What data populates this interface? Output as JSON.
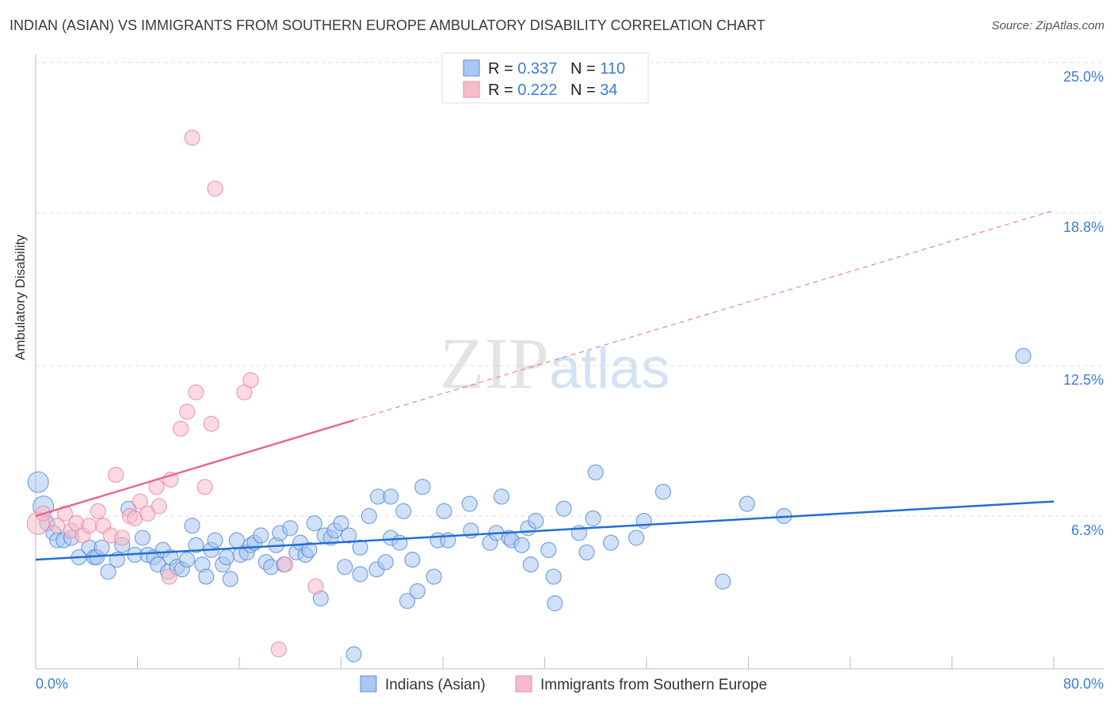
{
  "title": "INDIAN (ASIAN) VS IMMIGRANTS FROM SOUTHERN EUROPE AMBULATORY DISABILITY CORRELATION CHART",
  "source": "Source: ZipAtlas.com",
  "watermark": "ZIPatlas",
  "chart_data": {
    "type": "scatter",
    "ylabel": "Ambulatory Disability",
    "xlim": [
      0,
      80
    ],
    "ylim": [
      0,
      25
    ],
    "x_tick_labels": [
      "0.0%",
      "80.0%"
    ],
    "y_ticks": [
      6.3,
      12.5,
      18.8,
      25.0
    ],
    "y_tick_labels": [
      "6.3%",
      "12.5%",
      "18.8%",
      "25.0%"
    ],
    "legend": [
      {
        "r_label": "R = ",
        "r": "0.337",
        "n_label": "N = ",
        "n": "110"
      },
      {
        "r_label": "R = ",
        "r": "0.222",
        "n_label": "N = ",
        "n": "34"
      }
    ],
    "series": [
      {
        "name": "Indians (Asian)",
        "color": "#5b8fd8",
        "fill": "#a9c7f0",
        "line_color": "#1f6fd6",
        "trend": {
          "x0": 0,
          "y0": 4.5,
          "x1": 80,
          "y1": 6.9
        },
        "points": [
          [
            0.2,
            7.7
          ],
          [
            0.6,
            6.7
          ],
          [
            0.9,
            6.0
          ],
          [
            1.4,
            5.6
          ],
          [
            1.7,
            5.3
          ],
          [
            2.2,
            5.3
          ],
          [
            2.8,
            5.4
          ],
          [
            3.4,
            4.6
          ],
          [
            4.2,
            5.0
          ],
          [
            4.6,
            4.6
          ],
          [
            4.8,
            4.6
          ],
          [
            5.2,
            5.0
          ],
          [
            5.7,
            4.0
          ],
          [
            6.4,
            4.5
          ],
          [
            6.8,
            5.1
          ],
          [
            7.3,
            6.6
          ],
          [
            7.8,
            4.7
          ],
          [
            8.4,
            5.4
          ],
          [
            8.8,
            4.7
          ],
          [
            9.3,
            4.6
          ],
          [
            9.6,
            4.3
          ],
          [
            10.0,
            4.9
          ],
          [
            10.4,
            4.0
          ],
          [
            10.6,
            4.6
          ],
          [
            11.1,
            4.2
          ],
          [
            11.5,
            4.1
          ],
          [
            11.9,
            4.5
          ],
          [
            12.3,
            5.9
          ],
          [
            12.6,
            5.1
          ],
          [
            13.1,
            4.3
          ],
          [
            13.4,
            3.8
          ],
          [
            13.8,
            4.9
          ],
          [
            14.1,
            5.3
          ],
          [
            14.7,
            4.3
          ],
          [
            15.0,
            4.6
          ],
          [
            15.3,
            3.7
          ],
          [
            15.8,
            5.3
          ],
          [
            16.1,
            4.7
          ],
          [
            16.6,
            4.8
          ],
          [
            16.9,
            5.1
          ],
          [
            17.2,
            5.2
          ],
          [
            17.7,
            5.5
          ],
          [
            18.1,
            4.4
          ],
          [
            18.5,
            4.2
          ],
          [
            18.9,
            5.1
          ],
          [
            19.2,
            5.6
          ],
          [
            19.5,
            4.3
          ],
          [
            20.0,
            5.8
          ],
          [
            20.5,
            4.8
          ],
          [
            20.8,
            5.2
          ],
          [
            21.2,
            4.7
          ],
          [
            21.5,
            4.9
          ],
          [
            21.9,
            6.0
          ],
          [
            22.4,
            2.9
          ],
          [
            22.7,
            5.5
          ],
          [
            23.2,
            5.4
          ],
          [
            23.5,
            5.7
          ],
          [
            24.0,
            6.0
          ],
          [
            24.3,
            4.2
          ],
          [
            24.6,
            5.5
          ],
          [
            25.0,
            0.6
          ],
          [
            25.5,
            5.0
          ],
          [
            25.5,
            3.9
          ],
          [
            26.2,
            6.3
          ],
          [
            26.8,
            4.1
          ],
          [
            26.9,
            7.1
          ],
          [
            27.5,
            4.4
          ],
          [
            27.9,
            7.1
          ],
          [
            27.9,
            5.4
          ],
          [
            28.6,
            5.2
          ],
          [
            28.9,
            6.5
          ],
          [
            29.2,
            2.8
          ],
          [
            29.6,
            4.5
          ],
          [
            30.0,
            3.2
          ],
          [
            30.4,
            7.5
          ],
          [
            31.3,
            3.8
          ],
          [
            31.6,
            5.3
          ],
          [
            32.1,
            6.5
          ],
          [
            32.4,
            5.3
          ],
          [
            34.1,
            6.8
          ],
          [
            34.2,
            5.7
          ],
          [
            35.7,
            5.2
          ],
          [
            36.2,
            5.6
          ],
          [
            36.6,
            7.1
          ],
          [
            37.2,
            5.4
          ],
          [
            37.4,
            5.3
          ],
          [
            38.2,
            5.1
          ],
          [
            38.7,
            5.8
          ],
          [
            38.9,
            4.3
          ],
          [
            39.3,
            6.1
          ],
          [
            40.3,
            4.9
          ],
          [
            40.7,
            3.8
          ],
          [
            40.8,
            2.7
          ],
          [
            41.5,
            6.6
          ],
          [
            42.7,
            5.6
          ],
          [
            43.3,
            4.8
          ],
          [
            43.8,
            6.2
          ],
          [
            44.0,
            8.1
          ],
          [
            45.2,
            5.2
          ],
          [
            47.2,
            5.4
          ],
          [
            47.8,
            6.1
          ],
          [
            49.3,
            7.3
          ],
          [
            54.0,
            3.6
          ],
          [
            55.9,
            6.8
          ],
          [
            58.8,
            6.3
          ],
          [
            77.6,
            12.9
          ]
        ]
      },
      {
        "name": "Immigrants from Southern Europe",
        "color": "#e88aa5",
        "fill": "#f7bccb",
        "line_color": "#e8688f",
        "trend": {
          "x0": 0,
          "y0": 6.3,
          "x1": 25,
          "y1": 10.25,
          "dash_to_x": 80,
          "dash_to_y": 18.9
        },
        "points": [
          [
            0.2,
            6.0
          ],
          [
            0.6,
            6.4
          ],
          [
            1.7,
            5.9
          ],
          [
            2.3,
            6.4
          ],
          [
            2.8,
            5.7
          ],
          [
            3.2,
            6.0
          ],
          [
            3.7,
            5.5
          ],
          [
            4.2,
            5.9
          ],
          [
            4.9,
            6.5
          ],
          [
            5.3,
            5.9
          ],
          [
            5.9,
            5.5
          ],
          [
            6.3,
            8.0
          ],
          [
            6.8,
            5.4
          ],
          [
            7.4,
            6.3
          ],
          [
            7.8,
            6.2
          ],
          [
            8.2,
            6.9
          ],
          [
            8.8,
            6.4
          ],
          [
            9.5,
            7.5
          ],
          [
            9.7,
            6.7
          ],
          [
            10.5,
            3.8
          ],
          [
            10.6,
            7.8
          ],
          [
            11.4,
            9.9
          ],
          [
            11.9,
            10.6
          ],
          [
            12.3,
            21.9
          ],
          [
            12.6,
            11.4
          ],
          [
            13.3,
            7.5
          ],
          [
            13.8,
            10.1
          ],
          [
            14.1,
            19.8
          ],
          [
            16.4,
            11.4
          ],
          [
            16.9,
            11.9
          ],
          [
            19.1,
            0.8
          ],
          [
            19.6,
            4.3
          ],
          [
            22.0,
            3.4
          ]
        ]
      }
    ]
  }
}
